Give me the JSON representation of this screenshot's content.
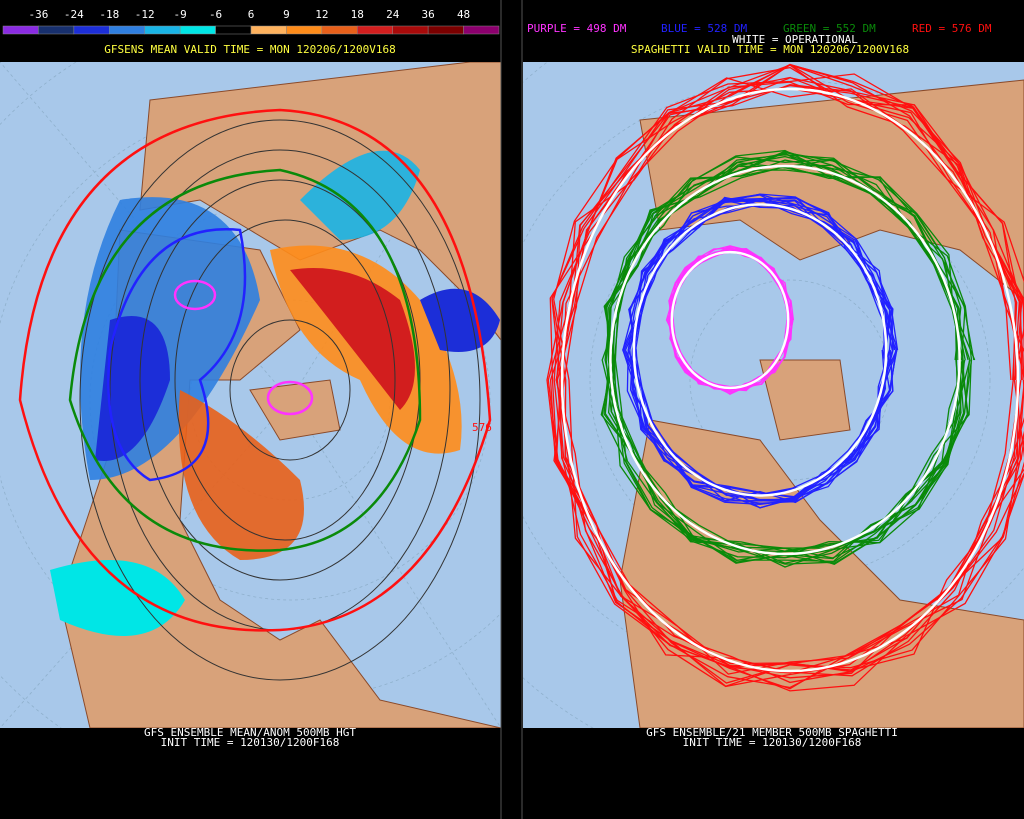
{
  "left_panel": {
    "colorbar": {
      "labels": [
        "-36",
        "-24",
        "-18",
        "-12",
        "-9",
        "-6",
        "6",
        "9",
        "12",
        "18",
        "24",
        "36",
        "48"
      ],
      "colors": [
        "#8a2be2",
        "#18306e",
        "#1c2ed8",
        "#2f7fe0",
        "#19b4e6",
        "#00e6e6",
        "#000000",
        "#ffb25e",
        "#ff8c1a",
        "#e8601a",
        "#d21e1e",
        "#a80a0a",
        "#7a0000",
        "#8c006e"
      ]
    },
    "title": "GFSENS MEAN VALID TIME = MON 120206/1200V168",
    "contour_label": "576",
    "footer": [
      "GFS ENSEMBLE MEAN/ANOM 500MB HGT",
      "INIT TIME = 120130/1200F168"
    ]
  },
  "right_panel": {
    "legend": [
      {
        "text": "PURPLE = 498 DM",
        "color": "#ff33ff"
      },
      {
        "text": "BLUE = 528 DM",
        "color": "#2222ff"
      },
      {
        "text": "GREEN = 552 DM",
        "color": "#0a8a0a"
      },
      {
        "text": "RED = 576 DM",
        "color": "#ff1010"
      }
    ],
    "operational": "WHITE = OPERATIONAL",
    "title": "SPAGHETTI VALID TIME = MON 120206/1200V168",
    "footer": [
      "GFS ENSEMBLE/21 MEMBER 500MB SPAGHETTI",
      "INIT TIME = 120130/1200F168"
    ]
  }
}
